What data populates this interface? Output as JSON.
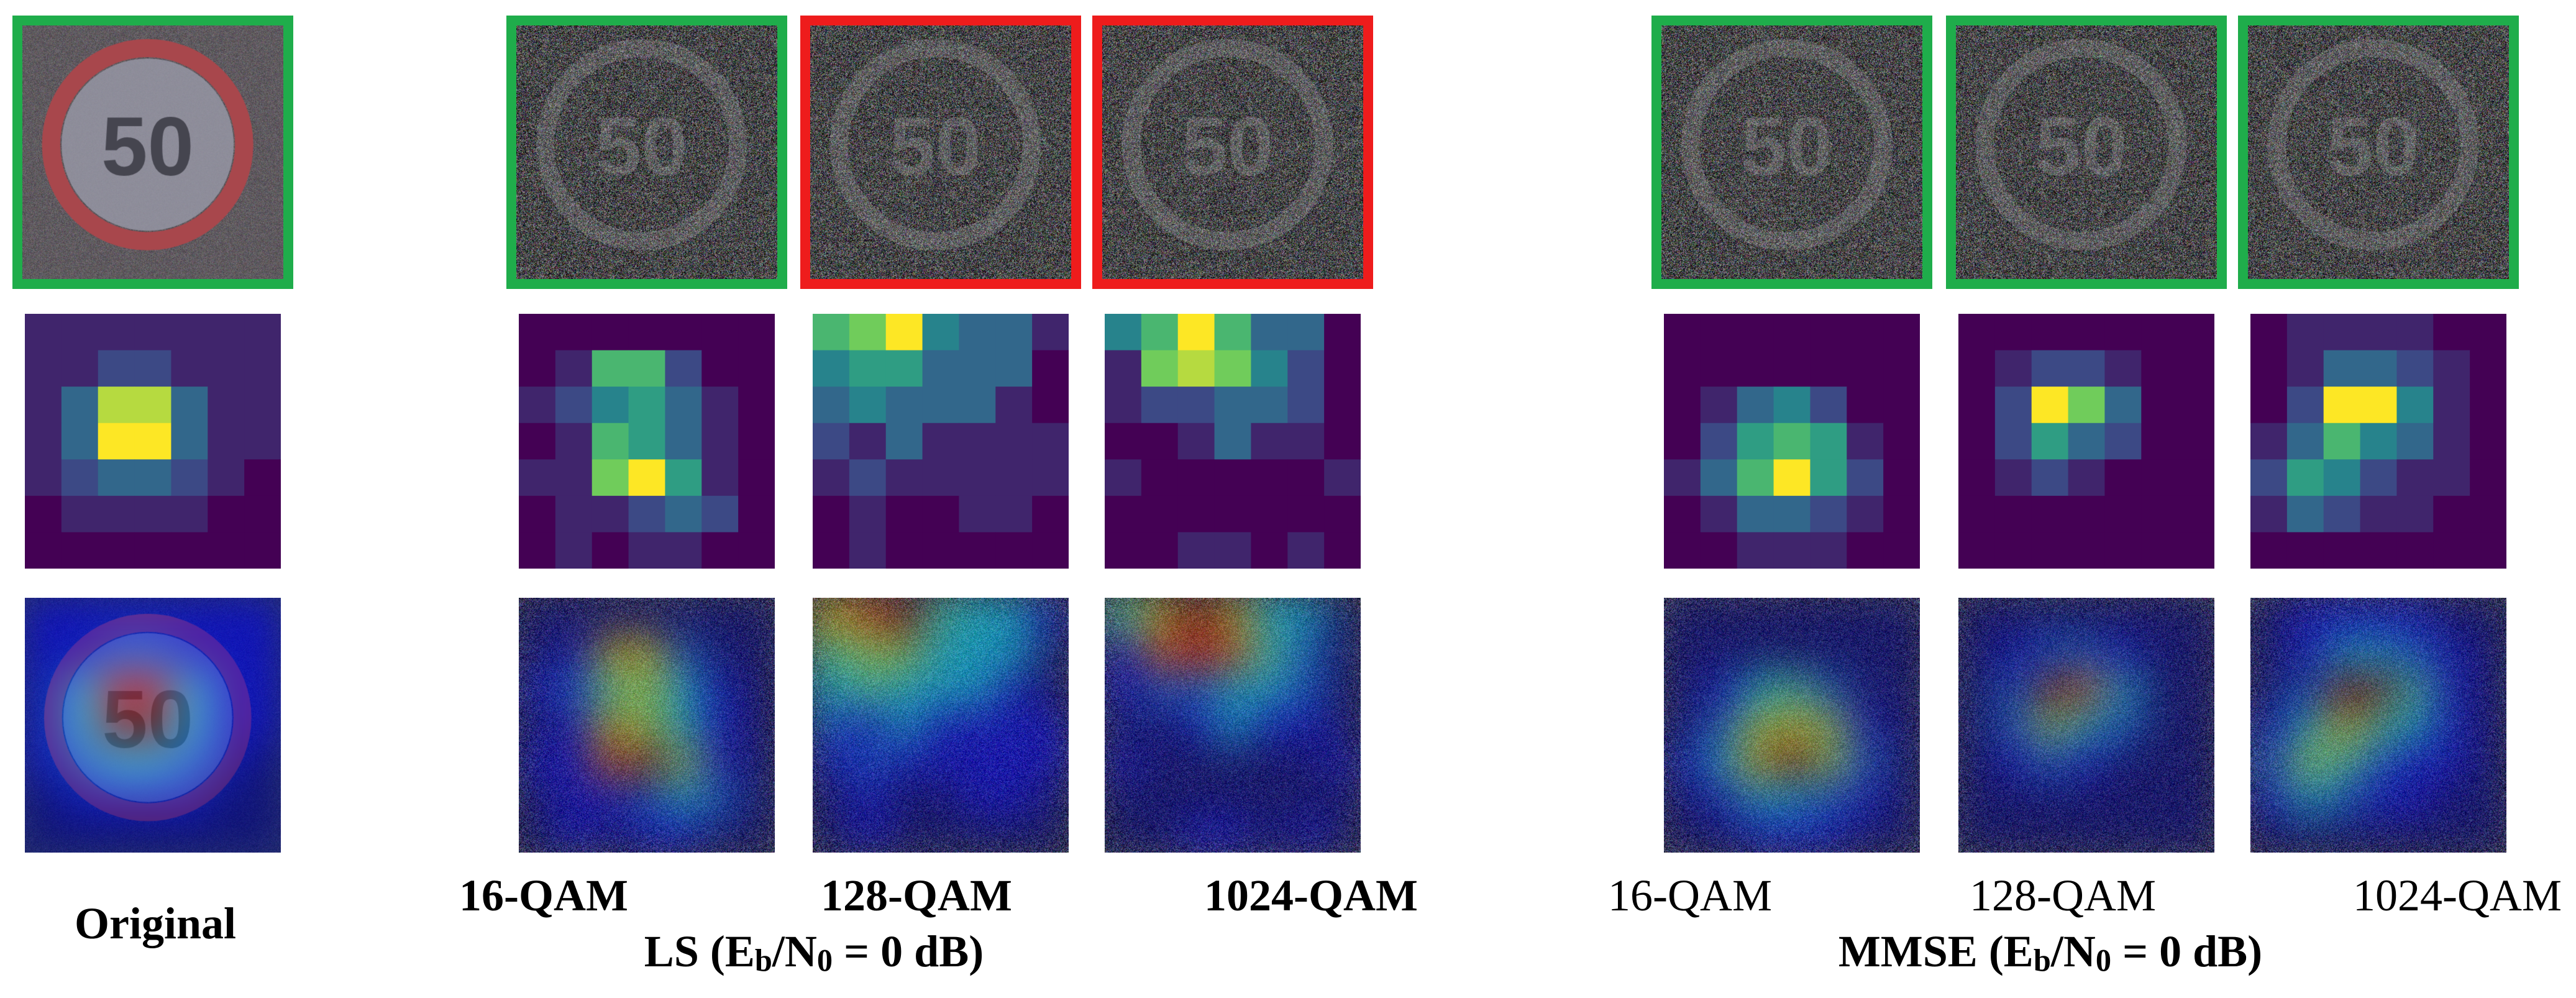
{
  "columns": [
    {
      "id": "original",
      "row1_border": "green",
      "label": "Original",
      "label_bold": true
    },
    {
      "id": "ls-16qam",
      "row1_border": "green",
      "label": "16-QAM",
      "label_bold": true
    },
    {
      "id": "ls-128qam",
      "row1_border": "red",
      "label": "128-QAM",
      "label_bold": true
    },
    {
      "id": "ls-1024qam",
      "row1_border": "red",
      "label": "1024-QAM",
      "label_bold": true
    },
    {
      "id": "mmse-16qam",
      "row1_border": "green",
      "label": "16-QAM",
      "label_bold": false
    },
    {
      "id": "mmse-128qam",
      "row1_border": "green",
      "label": "128-QAM",
      "label_bold": false
    },
    {
      "id": "mmse-1024qam",
      "row1_border": "green",
      "label": "1024-QAM",
      "label_bold": false
    }
  ],
  "group_labels": {
    "ls": {
      "prefix": "LS (E",
      "sub1": "b",
      "mid": "/N",
      "sub2": "0",
      "suffix": " = 0 dB)"
    },
    "mmse": {
      "prefix": "MMSE (E",
      "sub1": "b",
      "mid": "/N",
      "sub2": "0",
      "suffix": " = 0 dB)"
    }
  },
  "colors": {
    "correct_border": "#1fad4b",
    "incorrect_border": "#ee1c1c"
  },
  "sign_text": "50",
  "heatmaps": {
    "original": [
      [
        1,
        1,
        1,
        1,
        1,
        1,
        1
      ],
      [
        1,
        1,
        2,
        2,
        1,
        1,
        1
      ],
      [
        1,
        3,
        8,
        8,
        3,
        1,
        1
      ],
      [
        1,
        3,
        9,
        9,
        3,
        1,
        1
      ],
      [
        1,
        2,
        3,
        3,
        2,
        1,
        0
      ],
      [
        0,
        1,
        1,
        1,
        1,
        0,
        0
      ],
      [
        0,
        0,
        0,
        0,
        0,
        0,
        0
      ]
    ],
    "ls-16qam": [
      [
        0,
        0,
        0,
        0,
        0,
        0,
        0
      ],
      [
        0,
        1,
        6,
        6,
        2,
        0,
        0
      ],
      [
        1,
        2,
        4,
        5,
        3,
        1,
        0
      ],
      [
        0,
        1,
        6,
        5,
        3,
        1,
        0
      ],
      [
        1,
        1,
        7,
        9,
        5,
        1,
        0
      ],
      [
        0,
        1,
        1,
        2,
        3,
        2,
        0
      ],
      [
        0,
        1,
        0,
        1,
        1,
        0,
        0
      ]
    ],
    "ls-128qam": [
      [
        6,
        7,
        9,
        4,
        3,
        3,
        1
      ],
      [
        4,
        5,
        5,
        3,
        3,
        3,
        0
      ],
      [
        3,
        4,
        3,
        3,
        3,
        1,
        0
      ],
      [
        2,
        1,
        3,
        1,
        1,
        1,
        1
      ],
      [
        1,
        2,
        1,
        1,
        1,
        1,
        1
      ],
      [
        0,
        1,
        0,
        0,
        1,
        1,
        0
      ],
      [
        0,
        1,
        0,
        0,
        0,
        0,
        0
      ]
    ],
    "ls-1024qam": [
      [
        4,
        6,
        9,
        6,
        3,
        3,
        0
      ],
      [
        1,
        7,
        8,
        7,
        4,
        2,
        0
      ],
      [
        1,
        2,
        2,
        3,
        3,
        2,
        0
      ],
      [
        0,
        0,
        1,
        3,
        1,
        1,
        0
      ],
      [
        1,
        0,
        0,
        0,
        0,
        0,
        1
      ],
      [
        0,
        0,
        0,
        0,
        0,
        0,
        0
      ],
      [
        0,
        0,
        1,
        1,
        0,
        1,
        0
      ]
    ],
    "mmse-16qam": [
      [
        0,
        0,
        0,
        0,
        0,
        0,
        0
      ],
      [
        0,
        0,
        0,
        0,
        0,
        0,
        0
      ],
      [
        0,
        1,
        3,
        4,
        2,
        0,
        0
      ],
      [
        0,
        2,
        5,
        6,
        5,
        1,
        0
      ],
      [
        1,
        3,
        6,
        9,
        5,
        2,
        0
      ],
      [
        0,
        1,
        3,
        3,
        2,
        1,
        0
      ],
      [
        0,
        0,
        1,
        1,
        1,
        0,
        0
      ]
    ],
    "mmse-128qam": [
      [
        0,
        0,
        0,
        0,
        0,
        0,
        0
      ],
      [
        0,
        1,
        2,
        2,
        1,
        0,
        0
      ],
      [
        0,
        2,
        9,
        7,
        3,
        0,
        0
      ],
      [
        0,
        2,
        5,
        3,
        2,
        0,
        0
      ],
      [
        0,
        1,
        2,
        1,
        0,
        0,
        0
      ],
      [
        0,
        0,
        0,
        0,
        0,
        0,
        0
      ],
      [
        0,
        0,
        0,
        0,
        0,
        0,
        0
      ]
    ],
    "mmse-1024qam": [
      [
        0,
        1,
        1,
        1,
        1,
        0,
        0
      ],
      [
        0,
        1,
        3,
        3,
        2,
        1,
        0
      ],
      [
        0,
        2,
        9,
        9,
        4,
        1,
        0
      ],
      [
        1,
        3,
        6,
        4,
        3,
        1,
        0
      ],
      [
        2,
        5,
        4,
        2,
        1,
        1,
        0
      ],
      [
        1,
        3,
        2,
        1,
        1,
        0,
        0
      ],
      [
        0,
        0,
        0,
        0,
        0,
        0,
        0
      ]
    ]
  }
}
